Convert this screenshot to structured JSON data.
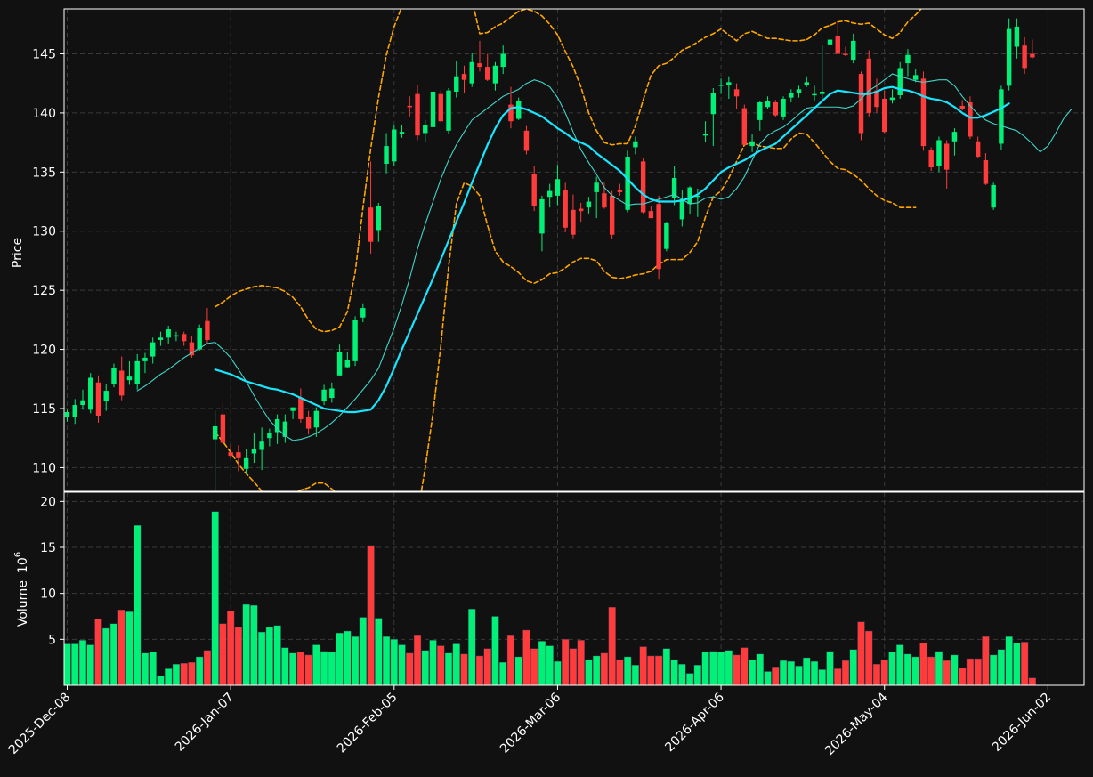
{
  "colors": {
    "background": "#111111",
    "up": "#00f078",
    "down": "#ff3b3b",
    "grid": "#3a3a3a",
    "axis": "#ffffff",
    "ma_fast": "#3fd6c8",
    "ma_slow": "#18e6ff",
    "bollinger": "#ffa500"
  },
  "chart_data": {
    "type": "candlestick",
    "price_panel": {
      "ylabel": "Price",
      "ylim": [
        108.0,
        148.8
      ],
      "yticks": [
        110,
        115,
        120,
        125,
        130,
        135,
        140,
        145
      ]
    },
    "volume_panel": {
      "ylabel": "Volume",
      "ylabel_exponent": "6",
      "ylim": [
        0,
        21.0
      ],
      "yticks": [
        5,
        10,
        15,
        20
      ]
    },
    "x_ticks": [
      {
        "index": 0,
        "label": "2025-Dec-08"
      },
      {
        "index": 21,
        "label": "2026-Jan-07"
      },
      {
        "index": 42,
        "label": "2026-Feb-05"
      },
      {
        "index": 63,
        "label": "2026-Mar-06"
      },
      {
        "index": 84,
        "label": "2026-Apr-06"
      },
      {
        "index": 105,
        "label": "2026-May-04"
      },
      {
        "index": 126,
        "label": "2026-Jun-02"
      }
    ],
    "candles_ohlcv": [
      [
        114.3,
        114.9,
        113.9,
        114.7,
        4.5
      ],
      [
        114.3,
        115.8,
        113.7,
        115.3,
        4.5
      ],
      [
        115.3,
        116.6,
        114.9,
        115.7,
        4.9
      ],
      [
        114.9,
        118.0,
        114.6,
        117.6,
        4.4
      ],
      [
        117.2,
        117.8,
        113.8,
        114.4,
        7.2
      ],
      [
        115.6,
        117.1,
        114.8,
        116.5,
        6.2
      ],
      [
        117.1,
        118.8,
        116.8,
        118.4,
        6.7
      ],
      [
        118.2,
        119.4,
        115.7,
        116.1,
        8.2
      ],
      [
        117.4,
        119.0,
        117.0,
        117.7,
        8.0
      ],
      [
        117.1,
        119.6,
        116.6,
        119.0,
        17.4
      ],
      [
        119.0,
        119.7,
        118.0,
        119.3,
        3.5
      ],
      [
        119.4,
        121.0,
        118.8,
        120.6,
        3.6
      ],
      [
        120.8,
        121.5,
        120.3,
        121.0,
        1.0
      ],
      [
        121.0,
        122.0,
        120.5,
        121.7,
        1.8
      ],
      [
        121.1,
        121.5,
        120.7,
        121.2,
        2.3
      ],
      [
        121.3,
        121.5,
        120.3,
        120.7,
        2.4
      ],
      [
        120.6,
        121.1,
        119.3,
        119.5,
        2.5
      ],
      [
        120.0,
        122.1,
        119.9,
        121.8,
        3.1
      ],
      [
        122.4,
        123.5,
        120.5,
        120.8,
        3.8
      ],
      [
        112.4,
        114.8,
        108.0,
        113.5,
        18.9
      ],
      [
        114.5,
        115.5,
        112.0,
        112.1,
        6.7
      ],
      [
        111.3,
        112.0,
        110.8,
        111.0,
        8.1
      ],
      [
        111.3,
        111.9,
        109.7,
        110.8,
        6.3
      ],
      [
        109.9,
        111.6,
        109.4,
        110.8,
        8.8
      ],
      [
        111.2,
        112.9,
        110.4,
        111.6,
        8.7
      ],
      [
        111.5,
        113.4,
        109.8,
        112.2,
        5.8
      ],
      [
        112.5,
        113.3,
        111.8,
        112.9,
        6.3
      ],
      [
        113.0,
        114.5,
        112.0,
        114.1,
        6.5
      ],
      [
        112.6,
        114.5,
        112.1,
        113.9,
        4.1
      ],
      [
        114.8,
        115.1,
        114.1,
        115.1,
        3.5
      ],
      [
        115.9,
        116.7,
        113.8,
        114.1,
        3.6
      ],
      [
        114.3,
        114.8,
        112.8,
        113.3,
        3.3
      ],
      [
        113.4,
        115.1,
        112.6,
        114.8,
        4.4
      ],
      [
        115.6,
        117.0,
        115.3,
        116.6,
        3.7
      ],
      [
        115.9,
        117.2,
        115.5,
        116.7,
        3.6
      ],
      [
        117.8,
        120.4,
        117.8,
        119.8,
        5.7
      ],
      [
        118.5,
        119.8,
        118.4,
        119.1,
        5.9
      ],
      [
        119.0,
        122.8,
        118.6,
        122.5,
        5.3
      ],
      [
        122.7,
        123.9,
        122.3,
        123.5,
        7.4
      ],
      [
        132.0,
        135.9,
        128.1,
        129.1,
        15.2
      ],
      [
        130.1,
        132.4,
        129.1,
        132.1,
        7.3
      ],
      [
        135.7,
        138.3,
        134.9,
        137.2,
        5.3
      ],
      [
        135.9,
        139.0,
        135.5,
        138.6,
        5.0
      ],
      [
        138.2,
        139.0,
        137.9,
        138.4,
        4.4
      ],
      [
        140.6,
        141.4,
        139.7,
        140.5,
        3.5
      ],
      [
        141.6,
        142.4,
        137.7,
        138.1,
        5.4
      ],
      [
        138.3,
        139.4,
        137.5,
        139.0,
        3.8
      ],
      [
        138.8,
        142.3,
        138.4,
        141.8,
        4.9
      ],
      [
        141.6,
        141.9,
        139.2,
        139.3,
        4.3
      ],
      [
        138.5,
        142.1,
        138.2,
        141.9,
        3.5
      ],
      [
        141.8,
        144.4,
        141.3,
        143.1,
        4.5
      ],
      [
        143.3,
        144.0,
        141.7,
        142.8,
        3.4
      ],
      [
        142.5,
        145.1,
        142.2,
        144.3,
        8.3
      ],
      [
        144.2,
        146.1,
        143.5,
        143.9,
        3.2
      ],
      [
        143.9,
        145.0,
        142.7,
        142.8,
        4.0
      ],
      [
        142.5,
        144.3,
        141.9,
        144.0,
        7.5
      ],
      [
        143.9,
        145.7,
        143.3,
        145.0,
        2.5
      ],
      [
        140.7,
        142.2,
        138.7,
        139.3,
        5.4
      ],
      [
        139.5,
        141.3,
        139.4,
        141.0,
        3.1
      ],
      [
        138.5,
        138.9,
        136.5,
        136.8,
        6.0
      ],
      [
        134.8,
        135.5,
        131.7,
        132.1,
        4.0
      ],
      [
        129.8,
        133.0,
        128.3,
        132.7,
        4.8
      ],
      [
        132.9,
        134.0,
        132.0,
        133.4,
        4.3
      ],
      [
        133.0,
        135.6,
        132.2,
        134.4,
        2.6
      ],
      [
        133.5,
        134.1,
        129.9,
        130.3,
        5.0
      ],
      [
        131.8,
        133.1,
        129.4,
        129.7,
        4.0
      ],
      [
        131.9,
        132.4,
        130.8,
        131.7,
        4.9
      ],
      [
        132.0,
        132.9,
        131.5,
        132.5,
        2.8
      ],
      [
        133.3,
        134.6,
        131.1,
        134.1,
        3.2
      ],
      [
        133.2,
        134.1,
        131.9,
        132.0,
        3.5
      ],
      [
        133.0,
        133.4,
        129.3,
        129.7,
        8.5
      ],
      [
        133.5,
        134.0,
        133.0,
        133.3,
        2.8
      ],
      [
        131.8,
        136.8,
        131.6,
        136.3,
        3.1
      ],
      [
        137.1,
        138.0,
        136.5,
        137.6,
        2.2
      ],
      [
        135.9,
        136.2,
        131.5,
        131.6,
        4.2
      ],
      [
        131.7,
        132.1,
        131.1,
        131.1,
        3.2
      ],
      [
        132.3,
        133.0,
        125.9,
        126.8,
        3.2
      ],
      [
        128.5,
        130.8,
        128.3,
        130.7,
        4.0
      ],
      [
        132.8,
        135.5,
        132.2,
        134.5,
        2.8
      ],
      [
        131.0,
        133.5,
        130.4,
        132.7,
        2.3
      ],
      [
        132.3,
        133.8,
        131.4,
        133.7,
        1.3
      ],
      [
        132.9,
        133.6,
        131.2,
        133.0,
        2.2
      ],
      [
        138.1,
        139.3,
        137.5,
        138.2,
        3.6
      ],
      [
        139.9,
        142.1,
        137.2,
        141.7,
        3.7
      ],
      [
        142.3,
        142.9,
        141.6,
        142.4,
        3.6
      ],
      [
        142.4,
        143.1,
        141.2,
        142.6,
        3.8
      ],
      [
        142.0,
        142.5,
        140.3,
        141.4,
        3.3
      ],
      [
        140.4,
        140.7,
        137.3,
        137.3,
        4.1
      ],
      [
        137.2,
        138.2,
        136.7,
        137.6,
        2.8
      ],
      [
        139.4,
        141.0,
        138.5,
        140.9,
        3.4
      ],
      [
        140.5,
        141.4,
        140.3,
        141.0,
        1.5
      ],
      [
        140.9,
        141.1,
        139.7,
        139.8,
        2.0
      ],
      [
        139.7,
        141.4,
        139.4,
        141.2,
        2.7
      ],
      [
        141.3,
        142.0,
        140.9,
        141.7,
        2.6
      ],
      [
        141.7,
        142.3,
        141.3,
        142.0,
        2.1
      ],
      [
        142.4,
        143.1,
        142.2,
        142.6,
        3.0
      ],
      [
        141.6,
        142.3,
        141.0,
        141.6,
        2.6
      ],
      [
        141.6,
        145.7,
        141.1,
        141.8,
        1.7
      ],
      [
        145.8,
        147.0,
        144.8,
        146.2,
        3.7
      ],
      [
        146.5,
        147.7,
        145.1,
        145.0,
        1.8
      ],
      [
        145.0,
        145.6,
        144.8,
        144.9,
        2.7
      ],
      [
        144.5,
        146.7,
        144.2,
        146.1,
        3.9
      ],
      [
        143.3,
        143.5,
        137.7,
        138.3,
        6.9
      ],
      [
        144.6,
        145.3,
        139.7,
        140.0,
        5.9
      ],
      [
        141.9,
        142.9,
        140.0,
        140.5,
        2.3
      ],
      [
        141.2,
        141.9,
        138.3,
        138.4,
        2.8
      ],
      [
        141.1,
        142.0,
        140.8,
        141.3,
        3.6
      ],
      [
        141.5,
        144.3,
        141.2,
        143.8,
        4.4
      ],
      [
        144.2,
        145.4,
        143.1,
        144.9,
        3.4
      ],
      [
        142.8,
        143.7,
        142.6,
        143.2,
        3.1
      ],
      [
        142.9,
        143.5,
        136.8,
        137.2,
        4.6
      ],
      [
        136.9,
        137.1,
        135.1,
        135.4,
        3.1
      ],
      [
        135.5,
        138.0,
        135.0,
        137.7,
        3.7
      ],
      [
        137.4,
        137.7,
        133.6,
        135.2,
        2.7
      ],
      [
        137.6,
        138.7,
        136.4,
        138.4,
        3.3
      ],
      [
        140.6,
        141.1,
        140.2,
        140.3,
        1.9
      ],
      [
        140.9,
        141.4,
        137.8,
        138.0,
        2.9
      ],
      [
        137.6,
        138.0,
        136.2,
        136.3,
        2.9
      ],
      [
        136.0,
        136.6,
        133.9,
        134.0,
        5.3
      ],
      [
        132.0,
        134.1,
        131.8,
        133.9,
        3.3
      ],
      [
        137.4,
        142.3,
        136.9,
        142.0,
        3.9
      ],
      [
        142.3,
        148.0,
        141.9,
        147.1,
        5.3
      ],
      [
        145.6,
        148.0,
        144.6,
        147.3,
        4.6
      ],
      [
        145.7,
        146.4,
        143.3,
        143.8,
        4.7
      ],
      [
        145.0,
        146.2,
        144.6,
        144.7,
        0.8
      ]
    ],
    "series": [
      {
        "kind": "moving_average_fast",
        "start_index": 9,
        "values": [
          116.5,
          116.9,
          117.4,
          117.9,
          118.3,
          118.8,
          119.3,
          119.7,
          120.1,
          120.5,
          120.6,
          120.0,
          119.3,
          118.3,
          117.3,
          116.1,
          115.0,
          114.0,
          113.3,
          112.7,
          112.3,
          112.4,
          112.6,
          112.9,
          113.3,
          113.8,
          114.4,
          115.1,
          115.8,
          116.6,
          117.4,
          118.4,
          120.1,
          121.8,
          123.8,
          126.0,
          128.5,
          130.6,
          132.5,
          134.4,
          136.0,
          137.3,
          138.4,
          139.4,
          139.9,
          140.4,
          140.9,
          141.4,
          141.7,
          142.0,
          142.5,
          142.8,
          142.6,
          142.2,
          141.3,
          140.0,
          138.4,
          136.9,
          135.8,
          134.8,
          133.7,
          133.0,
          132.6,
          132.2,
          132.3,
          132.3,
          132.5,
          132.7,
          132.9,
          133.1,
          132.7,
          132.3,
          132.4,
          132.8,
          132.9,
          132.7,
          132.9,
          133.6,
          134.6,
          136.0,
          137.4,
          138.1,
          138.5,
          138.8,
          139.3,
          139.9,
          140.4,
          140.5,
          140.5,
          140.5,
          140.5,
          140.4,
          140.6,
          141.2,
          141.9,
          142.3,
          142.8,
          143.3,
          143.1,
          142.9,
          142.7,
          142.6,
          142.7,
          142.8,
          142.8,
          142.3,
          141.4,
          140.6,
          139.9,
          139.4,
          139.1,
          138.9,
          138.7,
          138.5,
          138.0,
          137.4,
          136.7,
          137.2,
          138.3,
          139.5,
          140.3
        ]
      },
      {
        "kind": "moving_average_slow",
        "start_index": 19,
        "values": [
          118.3,
          118.1,
          117.9,
          117.6,
          117.3,
          117.1,
          116.9,
          116.7,
          116.6,
          116.4,
          116.2,
          115.9,
          115.6,
          115.3,
          115.0,
          114.9,
          114.8,
          114.7,
          114.7,
          114.8,
          114.9,
          115.7,
          116.9,
          118.4,
          120.0,
          121.5,
          123.0,
          124.5,
          126.0,
          127.6,
          129.2,
          130.8,
          132.4,
          134.1,
          135.7,
          137.3,
          138.7,
          139.8,
          140.4,
          140.5,
          140.3,
          140.0,
          139.7,
          139.2,
          138.7,
          138.3,
          137.8,
          137.5,
          137.2,
          136.6,
          136.1,
          135.6,
          135.1,
          134.4,
          133.7,
          133.1,
          132.7,
          132.5,
          132.5,
          132.5,
          132.6,
          132.8,
          133.1,
          133.6,
          134.3,
          135.0,
          135.4,
          135.7,
          136.0,
          136.4,
          136.8,
          137.1,
          137.4,
          138.0,
          138.6,
          139.2,
          139.8,
          140.4,
          141.0,
          141.6,
          141.9,
          141.8,
          141.7,
          141.6,
          141.6,
          141.8,
          142.1,
          142.2,
          142.0,
          141.9,
          141.7,
          141.4,
          141.2,
          141.1,
          140.9,
          140.5,
          140.0,
          139.6,
          139.6,
          139.8,
          140.1,
          140.4,
          140.8
        ]
      },
      {
        "kind": "bollinger_upper",
        "start_index": 19,
        "values": [
          123.6,
          124.0,
          124.5,
          124.9,
          125.1,
          125.3,
          125.4,
          125.3,
          125.2,
          124.9,
          124.4,
          123.6,
          122.5,
          121.7,
          121.5,
          121.6,
          121.9,
          123.2,
          126.5,
          132.0,
          137.0,
          141.3,
          144.9,
          147.3,
          149.0,
          150.6,
          152.1,
          153.5,
          154.6,
          155.4,
          155.6,
          155.3,
          153.2,
          149.6,
          146.7,
          146.8,
          147.3,
          147.6,
          148.1,
          148.6,
          148.8,
          148.6,
          148.2,
          147.5,
          146.6,
          145.2,
          143.9,
          142.2,
          140.0,
          138.5,
          137.5,
          137.3,
          137.4,
          137.4,
          138.9,
          141.1,
          143.2,
          144.0,
          144.2,
          144.7,
          145.3,
          145.6,
          146.0,
          146.4,
          146.7,
          147.1,
          146.6,
          146.1,
          146.7,
          146.9,
          146.6,
          146.3,
          146.3,
          146.2,
          146.1,
          146.1,
          146.2,
          146.6,
          147.2,
          147.4,
          147.7,
          147.8,
          147.6,
          147.5,
          147.6,
          147.1,
          146.6,
          146.3,
          146.8,
          147.7,
          148.3,
          149.0
        ]
      },
      {
        "kind": "bollinger_lower",
        "start_index": 19,
        "values": [
          113.0,
          112.2,
          111.3,
          110.3,
          109.5,
          108.8,
          108.0,
          107.7,
          107.6,
          107.8,
          107.9,
          108.1,
          108.3,
          108.7,
          108.7,
          108.2,
          107.6,
          106.6,
          103.4,
          100.2,
          98.2,
          97.1,
          96.8,
          97.3,
          99.6,
          102.4,
          106.0,
          110.0,
          114.6,
          120.3,
          127.0,
          132.3,
          134.1,
          133.8,
          133.0,
          130.5,
          128.3,
          127.4,
          127.0,
          126.5,
          125.8,
          125.6,
          125.9,
          126.4,
          126.5,
          126.9,
          127.4,
          127.7,
          127.7,
          127.5,
          126.6,
          126.1,
          126.0,
          126.1,
          126.3,
          126.4,
          126.6,
          127.2,
          127.6,
          127.6,
          127.6,
          128.2,
          129.1,
          131.2,
          132.9,
          133.4,
          134.5,
          135.9,
          137.3,
          137.5,
          137.2,
          137.1,
          137.0,
          137.0,
          137.8,
          138.3,
          138.2,
          137.5,
          136.7,
          135.9,
          135.3,
          135.2,
          134.8,
          134.3,
          133.6,
          133.0,
          132.6,
          132.4,
          132.0,
          132.0,
          132.0
        ]
      }
    ]
  }
}
